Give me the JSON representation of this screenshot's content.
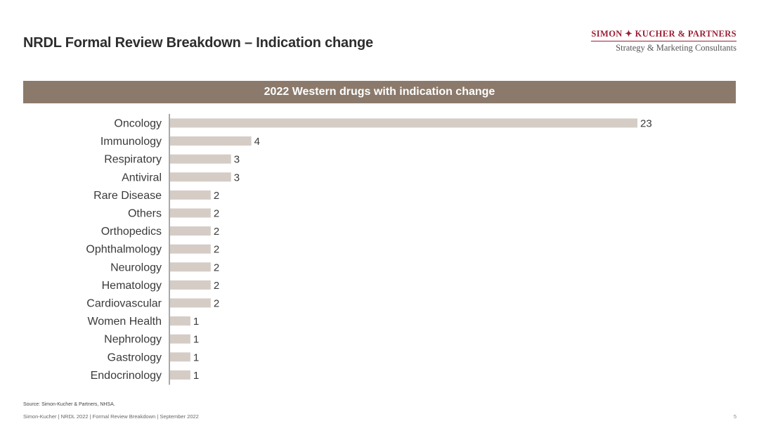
{
  "header": {
    "title": "NRDL Formal Review Breakdown – Indication change",
    "logo_name": "SIMON ✦ KUCHER & PARTNERS",
    "logo_tagline": "Strategy & Marketing Consultants"
  },
  "chart_data": {
    "type": "bar",
    "orientation": "horizontal",
    "title": "2022 Western drugs with indication change",
    "categories": [
      "Oncology",
      "Immunology",
      "Respiratory",
      "Antiviral",
      "Rare Disease",
      "Others",
      "Orthopedics",
      "Ophthalmology",
      "Neurology",
      "Hematology",
      "Cardiovascular",
      "Women Health",
      "Nephrology",
      "Gastrology",
      "Endocrinology"
    ],
    "values": [
      23,
      4,
      3,
      3,
      2,
      2,
      2,
      2,
      2,
      2,
      2,
      1,
      1,
      1,
      1
    ],
    "xlim": [
      0,
      23
    ],
    "data_labels": true,
    "bar_color": "#d5ccc6",
    "banner_color": "#8b7a6b"
  },
  "footer": {
    "source": "Source: Simon-Kucher & Partners, NHSA.",
    "text": "Simon-Kucher | NRDL 2022 | Formal Review Breakdown | September 2022",
    "page": "5"
  }
}
